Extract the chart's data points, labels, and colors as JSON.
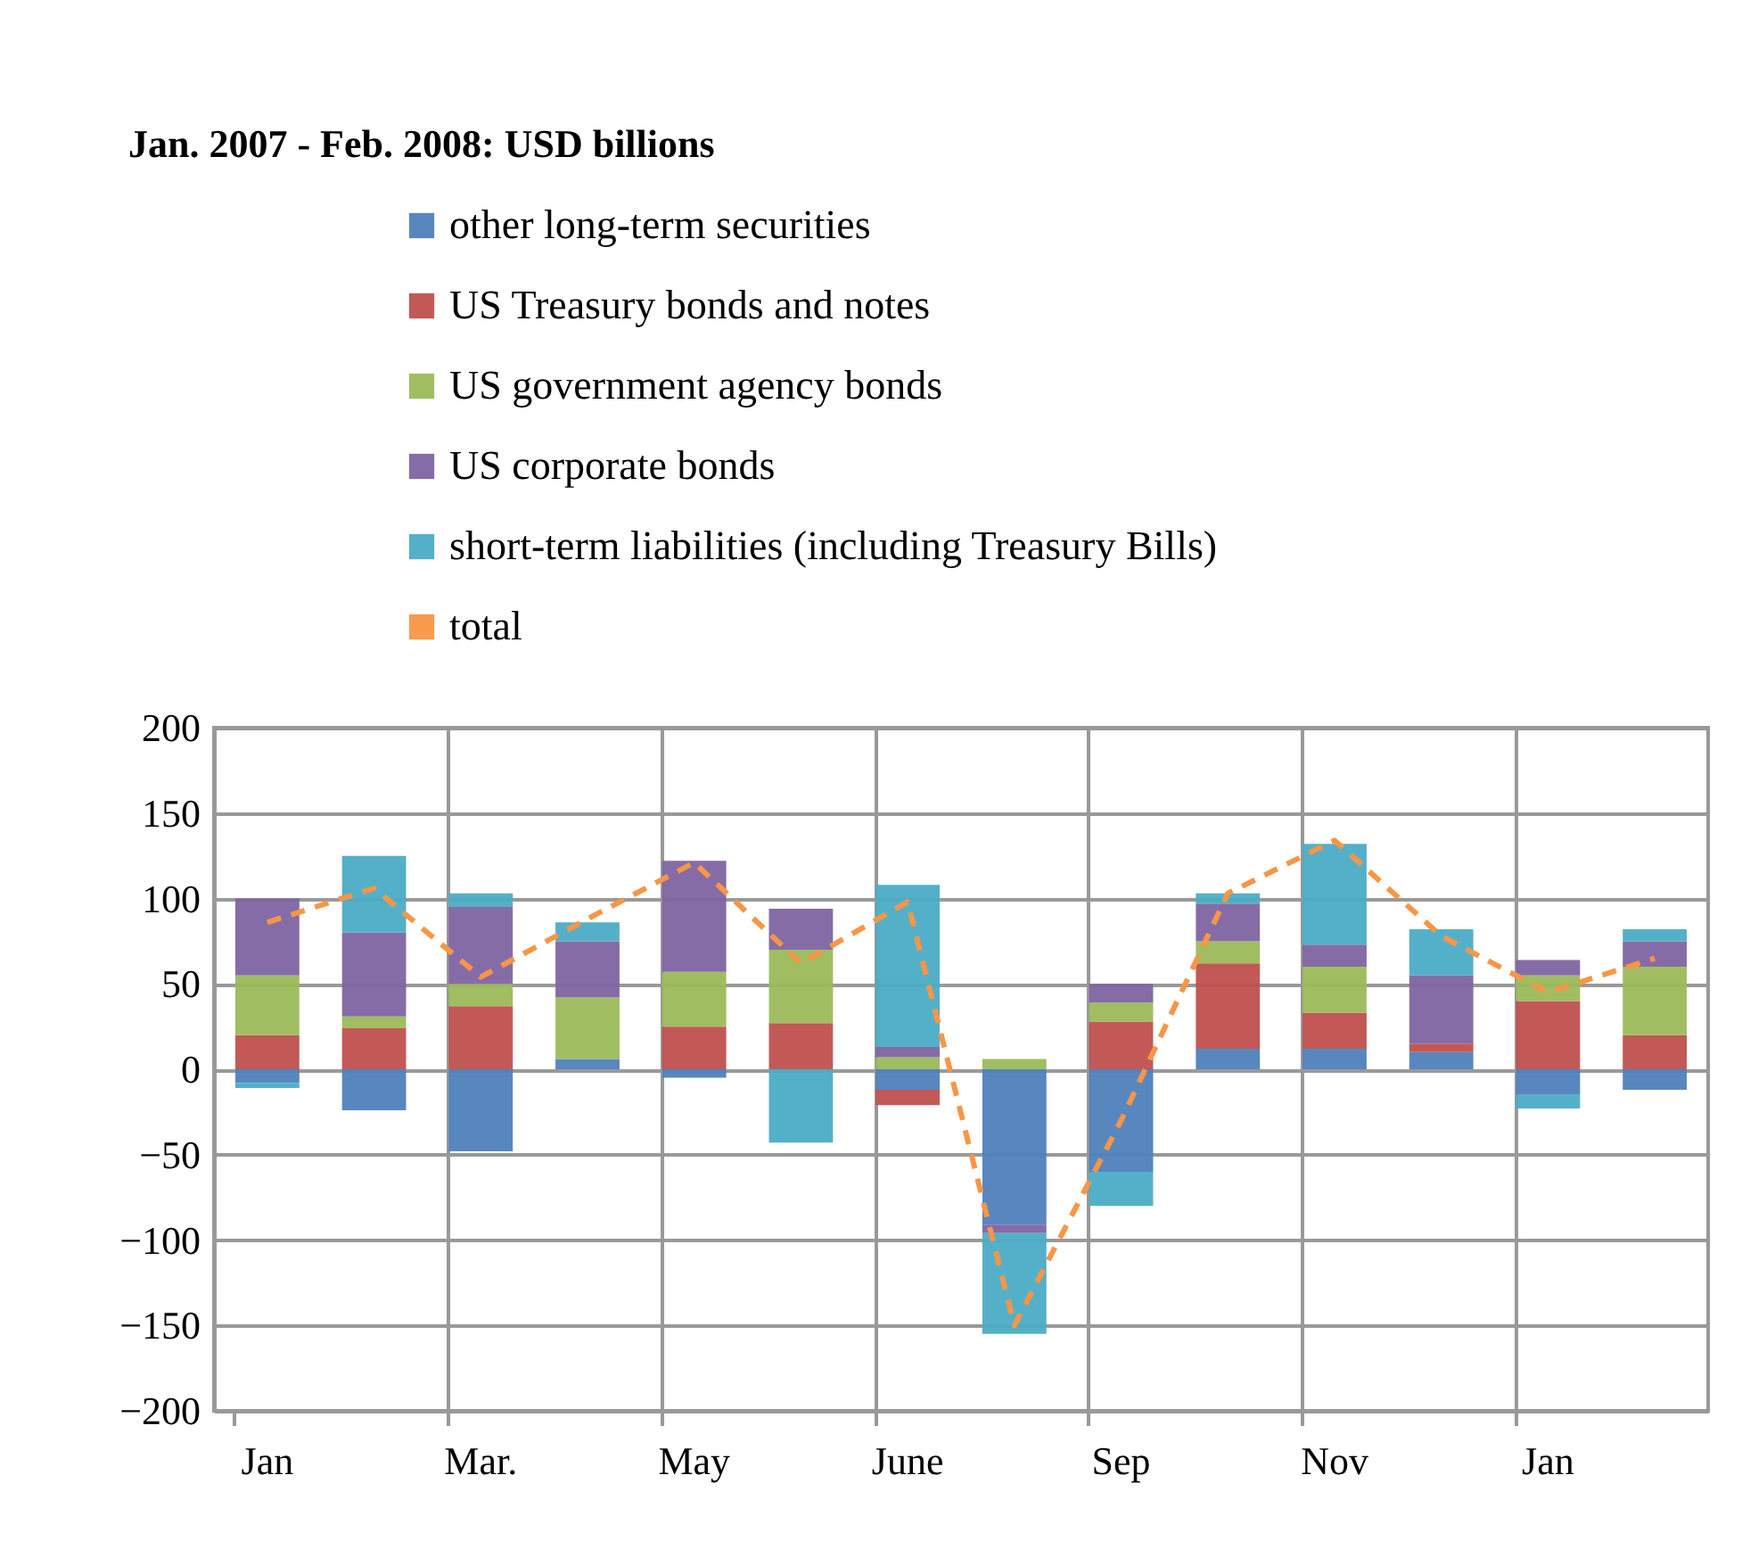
{
  "chart_data": {
    "type": "bar",
    "title": "Jan. 2007 - Feb. 2008: USD billions",
    "stacked": true,
    "categories": [
      "Jan",
      null,
      "Mar.",
      null,
      "May",
      null,
      "June",
      null,
      "Sep",
      null,
      "Nov",
      null,
      "Jan",
      null
    ],
    "series": [
      {
        "name": "other long-term securities",
        "color": "#4f81bd",
        "values": [
          -8,
          -24,
          -48,
          6,
          -5,
          0,
          -12,
          -91,
          -60,
          12,
          12,
          10,
          -15,
          -12
        ]
      },
      {
        "name": "US Treasury bonds and notes",
        "color": "#c0504d",
        "values": [
          20,
          24,
          37,
          0,
          25,
          27,
          -9,
          0,
          28,
          50,
          21,
          5,
          40,
          20
        ]
      },
      {
        "name": "US government agency bonds",
        "color": "#9bbb59",
        "values": [
          35,
          7,
          13,
          36,
          32,
          43,
          7,
          6,
          11,
          13,
          27,
          0,
          15,
          40
        ]
      },
      {
        "name": "US corporate bonds",
        "color": "#8064a2",
        "values": [
          45,
          49,
          45,
          33,
          65,
          24,
          6,
          -5,
          11,
          22,
          13,
          40,
          9,
          15
        ]
      },
      {
        "name": "short-term liabilities (including Treasury Bills)",
        "color": "#4bacc6",
        "values": [
          -3,
          45,
          8,
          11,
          0,
          -43,
          95,
          -59,
          -20,
          6,
          59,
          27,
          -8,
          7
        ]
      },
      {
        "name": "total",
        "type": "line",
        "color": "#f79646",
        "values": [
          86,
          106,
          54,
          88,
          121,
          62,
          98,
          -150,
          -30,
          103,
          134,
          78,
          45,
          65
        ]
      }
    ],
    "ylim": [
      -200,
      200
    ],
    "yticks": [
      -200,
      -150,
      -100,
      -50,
      0,
      50,
      100,
      150,
      200
    ],
    "grid": true,
    "legend": "top",
    "line_style": "dashed"
  }
}
